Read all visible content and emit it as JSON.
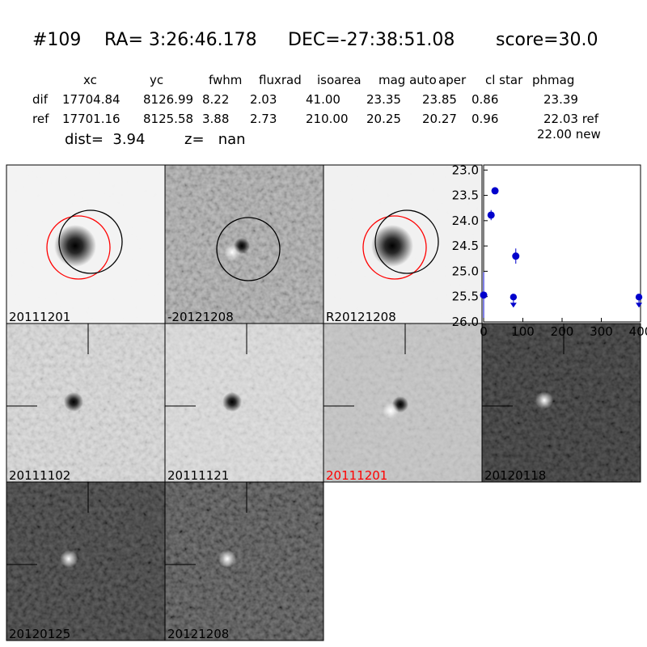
{
  "header": {
    "id": "#109",
    "ra": "RA= 3:26:46.178",
    "dec": "DEC=-27:38:51.08",
    "score": "score=30.0"
  },
  "table": {
    "columns": [
      "xc",
      "yc",
      "fwhm",
      "fluxrad",
      "isoarea",
      "mag auto",
      "aper",
      "cl star",
      "phmag"
    ],
    "rows": [
      {
        "label": "dif",
        "cells": [
          "17704.84",
          "8126.99",
          "8.22",
          "2.03",
          "41.00",
          "23.35",
          "23.85",
          "0.86",
          "23.39"
        ]
      },
      {
        "label": "ref",
        "cells": [
          "17701.16",
          "8125.58",
          "3.88",
          "2.73",
          "210.00",
          "20.25",
          "20.27",
          "0.96",
          "22.03 ref"
        ]
      }
    ],
    "note": "22.00 new"
  },
  "dist": "dist=  3.94",
  "z": "z=   nan",
  "stamps": [
    {
      "label": "20111201",
      "label_color": "black"
    },
    {
      "label": "-20121208",
      "label_color": "black"
    },
    {
      "label": "R20121208",
      "label_color": "black"
    },
    {
      "label": "20111102",
      "label_color": "black"
    },
    {
      "label": "20111121",
      "label_color": "black"
    },
    {
      "label": "20111201",
      "label_color": "red"
    },
    {
      "label": "20120118",
      "label_color": "black"
    },
    {
      "label": "20120125",
      "label_color": "black"
    },
    {
      "label": "20121208",
      "label_color": "black"
    }
  ],
  "chart_data": {
    "type": "scatter",
    "xlim": [
      0,
      400
    ],
    "ylim": [
      26.0,
      22.9
    ],
    "xticks": [
      0,
      100,
      200,
      300,
      400
    ],
    "yticks": [
      {
        "value": 23,
        "label": "23.0"
      },
      23.5,
      {
        "value": 24,
        "label": "24.0"
      },
      24.5,
      {
        "value": 25,
        "label": "25.0"
      },
      25.5,
      {
        "value": 26,
        "label": "26.0"
      }
    ],
    "grid": false,
    "series": [
      {
        "color": "#0000cc",
        "marker": "o",
        "x": [
          0,
          19,
          29,
          82
        ],
        "values": [
          25.47,
          23.89,
          23.41,
          24.7
        ],
        "errors": [
          0.45,
          0.1,
          0.03,
          0.15
        ]
      },
      {
        "color": "#0000cc",
        "marker": "v",
        "x": [
          76,
          396
        ],
        "values": [
          25.51,
          25.51
        ]
      }
    ]
  }
}
